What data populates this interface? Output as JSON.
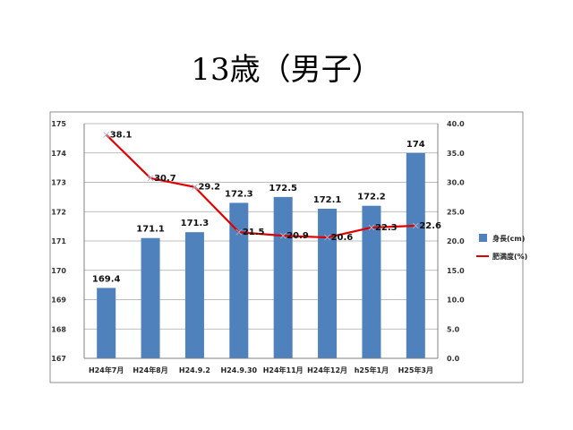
{
  "page": {
    "title": "13歳（男子）"
  },
  "chart_data": {
    "type": "bar+line",
    "categories": [
      "H24年7月",
      "H24年8月",
      "H24.9.2",
      "H24.9.30",
      "H24年11月",
      "H24年12月",
      "h25年1月",
      "H25年3月"
    ],
    "series": [
      {
        "name": "身長(cm)",
        "type": "bar",
        "axis": "left",
        "color": "#4F81BD",
        "values": [
          169.4,
          171.1,
          171.3,
          172.3,
          172.5,
          172.1,
          172.2,
          174
        ],
        "labels": [
          "169.4",
          "171.1",
          "171.3",
          "172.3",
          "172.5",
          "172.1",
          "172.2",
          "174"
        ]
      },
      {
        "name": "肥満度(%)",
        "type": "line",
        "axis": "right",
        "color": "#E00000",
        "values": [
          38.1,
          30.7,
          29.2,
          21.5,
          20.9,
          20.6,
          22.3,
          22.6
        ],
        "labels": [
          "38.1",
          "30.7",
          "29.2",
          "21.5",
          "20.9",
          "20.6",
          "22.3",
          "22.6"
        ]
      }
    ],
    "y_left": {
      "range": [
        167,
        175
      ],
      "ticks": [
        "167",
        "168",
        "169",
        "170",
        "171",
        "172",
        "173",
        "174",
        "175"
      ]
    },
    "y_right": {
      "range": [
        0,
        40
      ],
      "ticks": [
        "0.0",
        "5.0",
        "10.0",
        "15.0",
        "20.0",
        "25.0",
        "30.0",
        "35.0",
        "40.0"
      ]
    },
    "grid": true,
    "legend_position": "right"
  }
}
